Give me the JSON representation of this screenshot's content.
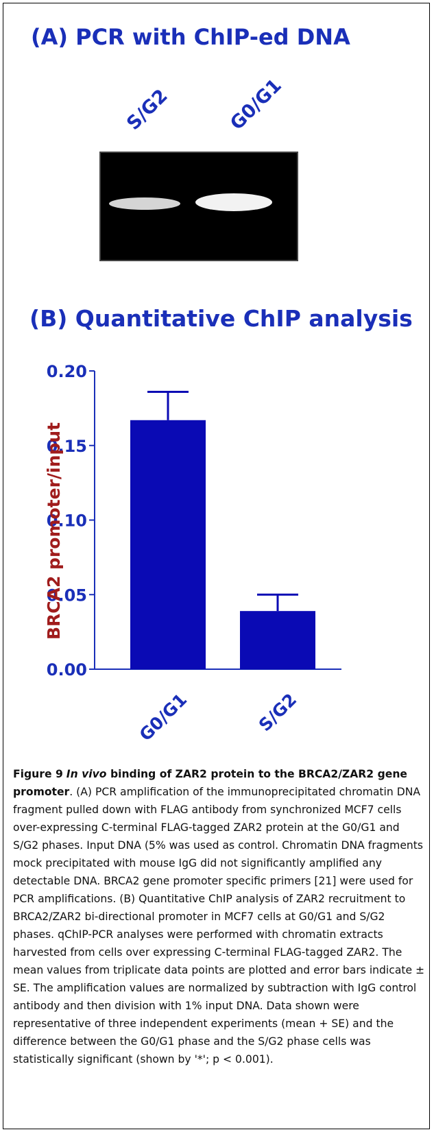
{
  "panel_a": {
    "title": "(A) PCR with ChIP-ed DNA",
    "lanes": [
      "S/G2",
      "G0/G1"
    ]
  },
  "panel_b": {
    "title": "(B) Quantitative ChIP analysis"
  },
  "chart_data": {
    "type": "bar",
    "title": "",
    "categories": [
      "G0/G1",
      "S/G2"
    ],
    "values": [
      0.167,
      0.039
    ],
    "errors": [
      0.019,
      0.011
    ],
    "xlabel": "",
    "ylabel": "BRCA2 promoter/input",
    "ylim": [
      0,
      0.2
    ],
    "yticks": [
      "0.00",
      "0.05",
      "0.10",
      "0.15",
      "0.20"
    ],
    "bar_color": "#0a0ab4",
    "grid": false
  },
  "caption": {
    "label": "Figure 9",
    "title_italic": "In vivo",
    "title_rest": " binding of ZAR2 protein to the BRCA2/ZAR2 gene promoter",
    "body": ". (A) PCR amplification of the immunoprecipitated chromatin DNA fragment pulled down with FLAG antibody from synchronized MCF7 cells over-expressing C-terminal FLAG-tagged ZAR2 protein at the G0/G1 and S/G2 phases. Input DNA (5% was used as control. Chromatin DNA fragments mock precipitated with mouse IgG did not significantly amplified any detectable DNA. BRCA2 gene promoter specific primers [21] were used for PCR amplifications. (B) Quantitative ChIP analysis of ZAR2 recruitment to BRCA2/ZAR2 bi-directional promoter in MCF7 cells at G0/G1 and S/G2 phases. qChIP-PCR analyses were performed with chromatin extracts harvested from cells over expressing C-terminal FLAG-tagged ZAR2. The mean values from triplicate data points are plotted and error bars indicate ± SE. The amplification values are normalized by subtraction with IgG control antibody and then division with 1% input DNA. Data shown were representative of three independent experiments (mean + SE) and the difference between the G0/G1 phase and the S/G2 phase cells was statistically significant (shown by '*'; p < 0.001)."
  }
}
